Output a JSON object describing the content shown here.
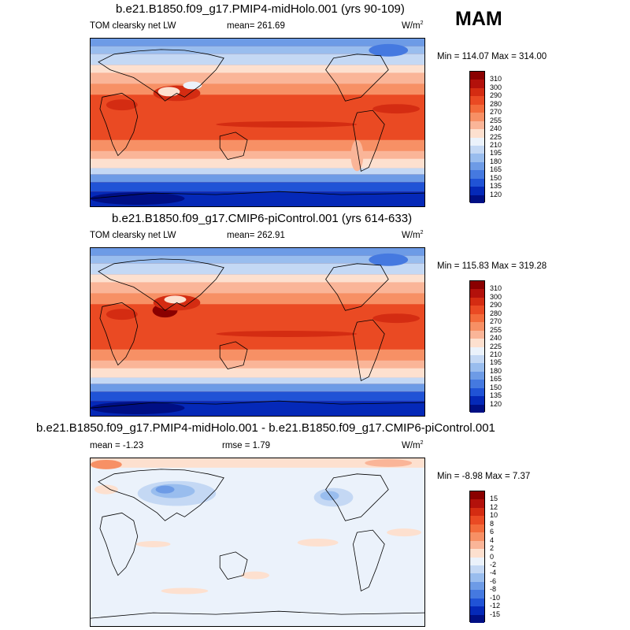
{
  "season": "MAM",
  "units": "W/m",
  "units_exp": "2",
  "panels": [
    {
      "title": "b.e21.B1850.f09_g17.PMIP4-midHolo.001 (yrs 90-109)",
      "left_label": "TOM clearsky net LW",
      "mean_text": "mean= 261.69",
      "rmse_text": "",
      "minmax_text": "Min = 114.07 Max = 314.00",
      "levels": [
        "310",
        "300",
        "290",
        "280",
        "270",
        "255",
        "240",
        "225",
        "210",
        "195",
        "180",
        "165",
        "150",
        "135",
        "120"
      ],
      "colors": [
        "#8a0000",
        "#b3110b",
        "#d42c12",
        "#ea4a23",
        "#f36b3b",
        "#f79065",
        "#fab598",
        "#fde0cf",
        "#ebf2fb",
        "#c4d8f4",
        "#99bdee",
        "#6d9be6",
        "#4579e0",
        "#2053d6",
        "#0529b8",
        "#000f84"
      ]
    },
    {
      "title": "b.e21.B1850.f09_g17.CMIP6-piControl.001 (yrs 614-633)",
      "left_label": "TOM clearsky net LW",
      "mean_text": "mean= 262.91",
      "rmse_text": "",
      "minmax_text": "Min = 115.83 Max = 319.28",
      "levels": [
        "310",
        "300",
        "290",
        "280",
        "270",
        "255",
        "240",
        "225",
        "210",
        "195",
        "180",
        "165",
        "150",
        "135",
        "120"
      ],
      "colors": [
        "#8a0000",
        "#b3110b",
        "#d42c12",
        "#ea4a23",
        "#f36b3b",
        "#f79065",
        "#fab598",
        "#fde0cf",
        "#ebf2fb",
        "#c4d8f4",
        "#99bdee",
        "#6d9be6",
        "#4579e0",
        "#2053d6",
        "#0529b8",
        "#000f84"
      ]
    },
    {
      "title": "b.e21.B1850.f09_g17.PMIP4-midHolo.001 - b.e21.B1850.f09_g17.CMIP6-piControl.001",
      "left_label": "",
      "mean_text": "mean =  -1.23",
      "rmse_text": "rmse =   1.79",
      "minmax_text": "Min =  -8.98 Max =   7.37",
      "levels": [
        "15",
        "12",
        "10",
        "8",
        "6",
        "4",
        "2",
        "0",
        "-2",
        "-4",
        "-6",
        "-8",
        "-10",
        "-12",
        "-15"
      ],
      "colors": [
        "#8a0000",
        "#b3110b",
        "#d42c12",
        "#ea4a23",
        "#f36b3b",
        "#f79065",
        "#fab598",
        "#fde0cf",
        "#ebf2fb",
        "#c4d8f4",
        "#99bdee",
        "#6d9be6",
        "#4579e0",
        "#2053d6",
        "#0529b8",
        "#000f84"
      ]
    }
  ]
}
